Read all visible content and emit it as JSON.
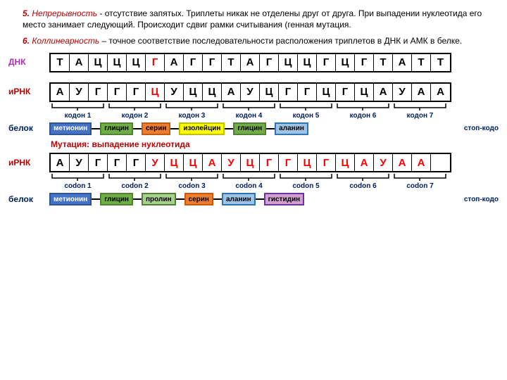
{
  "para1": {
    "num": "5.",
    "term": "Непрерывность",
    "text": " - отсутствие запятых. Триплеты никак не отделены друг от друга. При выпадении нуклеотида его место занимает следующий. Происходит сдвиг рамки считывания (генная мутация."
  },
  "para2": {
    "num": "6.",
    "term": "Коллинеарность",
    "text": " – точное соответствие последовательности расположения триплетов в ДНК и АМК в белке."
  },
  "labels": {
    "dnk": "ДНК",
    "irna": "иРНК",
    "protein": "белок"
  },
  "dna": [
    "Т",
    "А",
    "Ц",
    "Ц",
    "Ц",
    "Г",
    "А",
    "Г",
    "Г",
    "Т",
    "А",
    "Г",
    "Ц",
    "Ц",
    "Г",
    "Ц",
    "Г",
    "Т",
    "А",
    "Т",
    "Т"
  ],
  "dna_hl": [
    5
  ],
  "rna1": [
    "А",
    "У",
    "Г",
    "Г",
    "Г",
    "Ц",
    "У",
    "Ц",
    "Ц",
    "А",
    "У",
    "Ц",
    "Г",
    "Г",
    "Ц",
    "Г",
    "Ц",
    "А",
    "У",
    "А",
    "А"
  ],
  "rna1_hl": [
    5
  ],
  "rna2": [
    "А",
    "У",
    "Г",
    "Г",
    "Г",
    "У",
    "Ц",
    "Ц",
    "А",
    "У",
    "Ц",
    "Г",
    "Г",
    "Ц",
    "Г",
    "Ц",
    "А",
    "У",
    "А",
    "А",
    ""
  ],
  "rna2_hl": [
    5,
    6,
    7,
    8,
    9,
    10,
    11,
    12,
    13,
    14,
    15,
    16,
    17,
    18,
    19
  ],
  "codons1": [
    "кодон 1",
    "кодон 2",
    "кодон 3",
    "кодон 4",
    "кодон 5",
    "кодон 6",
    "кодон 7"
  ],
  "codons2": [
    "codon 1",
    "codon 2",
    "codon 3",
    "codon 4",
    "codon 5",
    "codon 6",
    "codon 7"
  ],
  "stop_label": "стоп-кодо",
  "mutation_title": "Мутация: выпадение нуклеотида",
  "aa_colors": {
    "met": {
      "bg": "#4472c4",
      "bd": "#2f5597",
      "fg": "#fff"
    },
    "gly": {
      "bg": "#70ad47",
      "bd": "#548235",
      "fg": "#000"
    },
    "ser": {
      "bg": "#ed7d31",
      "bd": "#c55a11",
      "fg": "#000"
    },
    "ile": {
      "bg": "#ffff00",
      "bd": "#bfbf00",
      "fg": "#000"
    },
    "ala": {
      "bg": "#9dc3e6",
      "bd": "#2e75b6",
      "fg": "#000"
    },
    "pro": {
      "bg": "#a9d18e",
      "bd": "#548235",
      "fg": "#000"
    },
    "his": {
      "bg": "#d0a0d0",
      "bd": "#7030a0",
      "fg": "#000"
    }
  },
  "chain1": [
    {
      "k": "met",
      "t": "метионин"
    },
    {
      "k": "gly",
      "t": "глицин"
    },
    {
      "k": "ser",
      "t": "серин"
    },
    {
      "k": "ile",
      "t": "изолейцин"
    },
    {
      "k": "gly",
      "t": "глицин"
    },
    {
      "k": "ala",
      "t": "аланин"
    }
  ],
  "chain2": [
    {
      "k": "met",
      "t": "метионин"
    },
    {
      "k": "gly",
      "t": "глицин"
    },
    {
      "k": "pro",
      "t": "пролин"
    },
    {
      "k": "ser",
      "t": "серин"
    },
    {
      "k": "ala",
      "t": "аланин"
    },
    {
      "k": "his",
      "t": "гистидин"
    }
  ],
  "bracket_stroke": "#000000"
}
